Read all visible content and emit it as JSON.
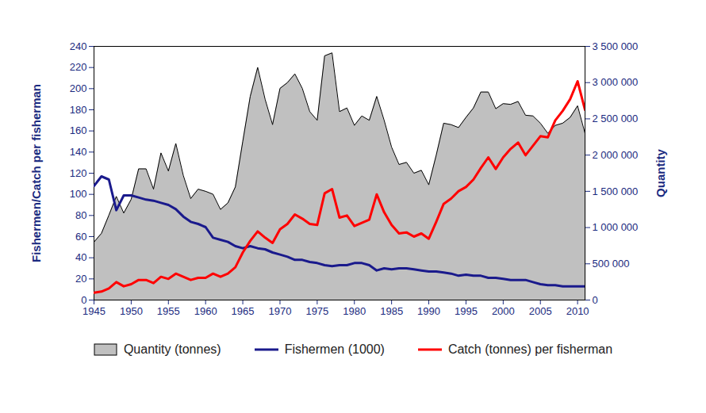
{
  "chart_data": {
    "type": "line",
    "ylabel": "Fishermen/Catch per fisherman",
    "y2label": "Quantity",
    "legend": "bottom",
    "x": [
      1945,
      1946,
      1947,
      1948,
      1949,
      1950,
      1951,
      1952,
      1953,
      1954,
      1955,
      1956,
      1957,
      1958,
      1959,
      1960,
      1961,
      1962,
      1963,
      1964,
      1965,
      1966,
      1967,
      1968,
      1969,
      1970,
      1971,
      1972,
      1973,
      1974,
      1975,
      1976,
      1977,
      1978,
      1979,
      1980,
      1981,
      1982,
      1983,
      1984,
      1985,
      1986,
      1987,
      1988,
      1989,
      1990,
      1991,
      1992,
      1993,
      1994,
      1995,
      1996,
      1997,
      1998,
      1999,
      2000,
      2001,
      2002,
      2003,
      2004,
      2005,
      2006,
      2007,
      2008,
      2009,
      2010,
      2011
    ],
    "xlim": [
      1945,
      2011
    ],
    "xticks": [
      1945,
      1950,
      1955,
      1960,
      1965,
      1970,
      1975,
      1980,
      1985,
      1990,
      1995,
      2000,
      2005,
      2010
    ],
    "ylim": [
      0,
      240
    ],
    "yticks": [
      0,
      20,
      40,
      60,
      80,
      100,
      120,
      140,
      160,
      180,
      200,
      220,
      240
    ],
    "y2lim": [
      0,
      3500000
    ],
    "y2ticks": [
      0,
      {
        "value": 500000,
        "label": "500 000"
      },
      {
        "value": 1000000,
        "label": "1 000 000"
      },
      {
        "value": 1500000,
        "label": "1 500 000"
      },
      {
        "value": 2000000,
        "label": "2 000 000"
      },
      {
        "value": 2500000,
        "label": "2 500 000"
      },
      {
        "value": 3000000,
        "label": "3 000 000"
      },
      {
        "value": 3500000,
        "label": "3 500 000"
      }
    ],
    "series": [
      {
        "name": "Quantity (tonnes)",
        "type": "area",
        "axis": "y2",
        "color": "#c0c0c0",
        "values": [
          800000,
          920000,
          1170000,
          1430000,
          1200000,
          1390000,
          1810000,
          1810000,
          1530000,
          2030000,
          1780000,
          2160000,
          1720000,
          1400000,
          1530000,
          1500000,
          1460000,
          1250000,
          1340000,
          1560000,
          2190000,
          2810000,
          3210000,
          2770000,
          2420000,
          2920000,
          3000000,
          3120000,
          2920000,
          2600000,
          2480000,
          3370000,
          3410000,
          2600000,
          2650000,
          2410000,
          2540000,
          2480000,
          2810000,
          2480000,
          2110000,
          1870000,
          1900000,
          1750000,
          1790000,
          1590000,
          2000000,
          2440000,
          2420000,
          2380000,
          2520000,
          2650000,
          2870000,
          2870000,
          2640000,
          2710000,
          2700000,
          2740000,
          2550000,
          2540000,
          2440000,
          2300000,
          2410000,
          2440000,
          2520000,
          2680000,
          2300000
        ]
      },
      {
        "name": "Fishermen (1000)",
        "type": "line",
        "color": "#1a1a8c",
        "values": [
          108,
          117,
          114,
          85,
          99,
          99,
          97,
          95,
          94,
          92,
          90,
          86,
          79,
          74,
          72,
          69,
          59,
          57,
          55,
          51,
          49,
          51,
          49,
          48,
          45,
          43,
          41,
          38,
          38,
          36,
          35,
          33,
          32,
          33,
          33,
          35,
          35,
          33,
          28,
          30,
          29,
          30,
          30,
          29,
          28,
          27,
          27,
          26,
          25,
          23,
          24,
          23,
          23,
          21,
          21,
          20,
          19,
          19,
          19,
          17,
          15,
          14,
          14,
          13,
          13,
          13,
          13
        ]
      },
      {
        "name": "Catch (tonnes) per fisherman",
        "type": "line",
        "color": "#ff0000",
        "values": [
          7,
          8,
          11,
          17,
          13,
          15,
          19,
          19,
          16,
          22,
          20,
          25,
          22,
          19,
          21,
          21,
          25,
          22,
          25,
          31,
          45,
          56,
          65,
          59,
          54,
          67,
          72,
          81,
          77,
          72,
          71,
          101,
          105,
          78,
          80,
          70,
          73,
          76,
          100,
          83,
          71,
          63,
          64,
          60,
          63,
          58,
          74,
          91,
          96,
          103,
          107,
          114,
          125,
          135,
          124,
          135,
          143,
          149,
          137,
          146,
          155,
          154,
          170,
          179,
          190,
          207,
          180
        ]
      }
    ]
  }
}
